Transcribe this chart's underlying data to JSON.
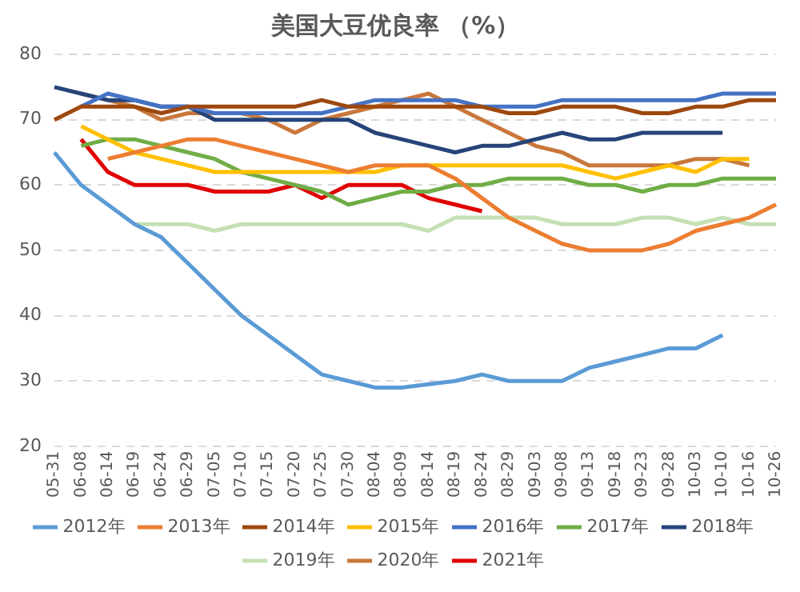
{
  "chart_data": {
    "type": "line",
    "title": "美国大豆优良率 （%）",
    "categories": [
      "05-31",
      "06-08",
      "06-14",
      "06-19",
      "06-24",
      "06-29",
      "07-05",
      "07-10",
      "07-15",
      "07-20",
      "07-25",
      "07-30",
      "08-04",
      "08-09",
      "08-14",
      "08-19",
      "08-24",
      "08-29",
      "09-03",
      "09-08",
      "09-13",
      "09-18",
      "09-23",
      "09-28",
      "10-03",
      "10-10",
      "10-16",
      "10-26"
    ],
    "series": [
      {
        "name": "2012年",
        "color": "#5b9bd5",
        "values": [
          65,
          60,
          57,
          54,
          52,
          48,
          44,
          40,
          37,
          34,
          31,
          30,
          29,
          29,
          29.5,
          30,
          31,
          30,
          30,
          30,
          32,
          33,
          34,
          35,
          35,
          37,
          null,
          null
        ]
      },
      {
        "name": "2013年",
        "color": "#ed7d31",
        "values": [
          null,
          null,
          64,
          65,
          66,
          67,
          67,
          66,
          65,
          64,
          63,
          62,
          63,
          63,
          63,
          61,
          58,
          55,
          53,
          51,
          50,
          50,
          50,
          51,
          53,
          54,
          55,
          57
        ]
      },
      {
        "name": "2014年",
        "color": "#9e480e",
        "values": [
          70,
          72,
          72,
          72,
          71,
          72,
          72,
          72,
          72,
          72,
          73,
          72,
          72,
          72,
          72,
          72,
          72,
          71,
          71,
          72,
          72,
          72,
          71,
          71,
          72,
          72,
          73,
          73
        ]
      },
      {
        "name": "2015年",
        "color": "#ffc000",
        "values": [
          null,
          69,
          67,
          65,
          64,
          63,
          62,
          62,
          62,
          62,
          62,
          62,
          62,
          63,
          63,
          63,
          63,
          63,
          63,
          63,
          62,
          61,
          62,
          63,
          62,
          64,
          64,
          null
        ]
      },
      {
        "name": "2016年",
        "color": "#4472c4",
        "values": [
          null,
          72,
          74,
          73,
          72,
          72,
          71,
          71,
          71,
          71,
          71,
          72,
          73,
          73,
          73,
          73,
          72,
          72,
          72,
          73,
          73,
          73,
          73,
          73,
          73,
          74,
          74,
          74
        ]
      },
      {
        "name": "2017年",
        "color": "#70ad47",
        "values": [
          null,
          66,
          67,
          67,
          66,
          65,
          64,
          62,
          61,
          60,
          59,
          57,
          58,
          59,
          59,
          60,
          60,
          61,
          61,
          61,
          60,
          60,
          59,
          60,
          60,
          61,
          61,
          61
        ]
      },
      {
        "name": "2018年",
        "color": "#264478",
        "values": [
          75,
          74,
          73,
          73,
          72,
          72,
          70,
          70,
          70,
          70,
          70,
          70,
          68,
          67,
          66,
          65,
          66,
          66,
          67,
          68,
          67,
          67,
          68,
          68,
          68,
          68,
          null,
          null
        ]
      },
      {
        "name": "2019年",
        "color": "#c5e0b4",
        "values": [
          null,
          null,
          null,
          54,
          54,
          54,
          53,
          54,
          54,
          54,
          54,
          54,
          54,
          54,
          53,
          55,
          55,
          55,
          55,
          54,
          54,
          54,
          55,
          55,
          54,
          55,
          54,
          54
        ]
      },
      {
        "name": "2020年",
        "color": "#c9773a",
        "values": [
          null,
          74,
          73,
          72,
          70,
          71,
          71,
          71,
          70,
          68,
          70,
          71,
          72,
          73,
          74,
          72,
          70,
          68,
          66,
          65,
          63,
          63,
          63,
          63,
          64,
          64,
          63,
          null
        ]
      },
      {
        "name": "2021年",
        "color": "#e00000",
        "values": [
          null,
          67,
          62,
          60,
          60,
          60,
          59,
          59,
          59,
          60,
          58,
          60,
          60,
          60,
          58,
          57,
          56,
          null,
          null,
          null,
          null,
          null,
          null,
          null,
          null,
          null,
          null,
          null
        ]
      }
    ],
    "ylim": [
      20,
      80
    ],
    "yticks": [
      20,
      30,
      40,
      50,
      60,
      70,
      80
    ],
    "grid": "y",
    "legend": "bottom",
    "marker": "none",
    "line_style": "solid"
  }
}
